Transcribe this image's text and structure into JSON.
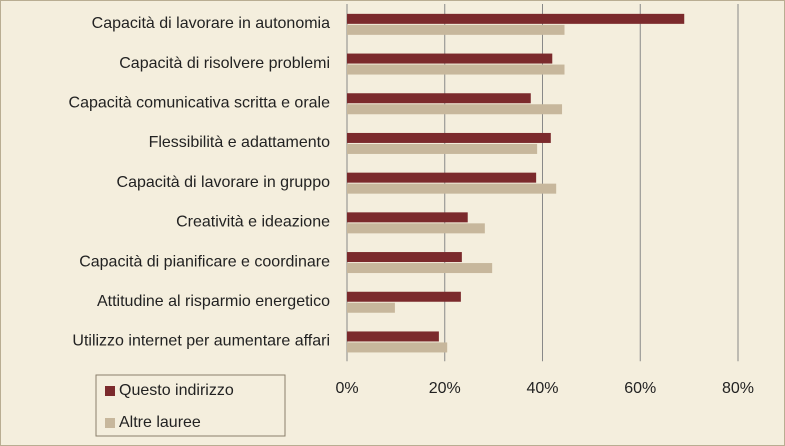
{
  "chart_data": {
    "type": "hbar",
    "categories": [
      "Capacità di lavorare in autonomia",
      "Capacità di risolvere problemi",
      "Capacità comunicativa scritta e orale",
      "Flessibilità e adattamento",
      "Capacità di lavorare in gruppo",
      "Creatività e ideazione",
      "Capacità di pianificare e coordinare",
      "Attitudine al risparmio energetico",
      "Utilizzo internet per aumentare affari"
    ],
    "series": [
      {
        "name": "Questo indirizzo",
        "color": "#7b2a2c",
        "values": [
          69,
          42,
          37.6,
          41.7,
          38.7,
          24.7,
          23.5,
          23.3,
          18.8
        ]
      },
      {
        "name": "Altre lauree",
        "color": "#c7b79c",
        "values": [
          44.5,
          44.5,
          44,
          38.9,
          42.8,
          28.2,
          29.7,
          9.8,
          20.5
        ]
      }
    ],
    "xlim": [
      0,
      80
    ],
    "xticks": [
      {
        "value": 0,
        "label": "0%"
      },
      {
        "value": 20,
        "label": "20%"
      },
      {
        "value": 40,
        "label": "40%"
      },
      {
        "value": 60,
        "label": "60%"
      },
      {
        "value": 80,
        "label": "80%"
      }
    ],
    "grid": true
  }
}
